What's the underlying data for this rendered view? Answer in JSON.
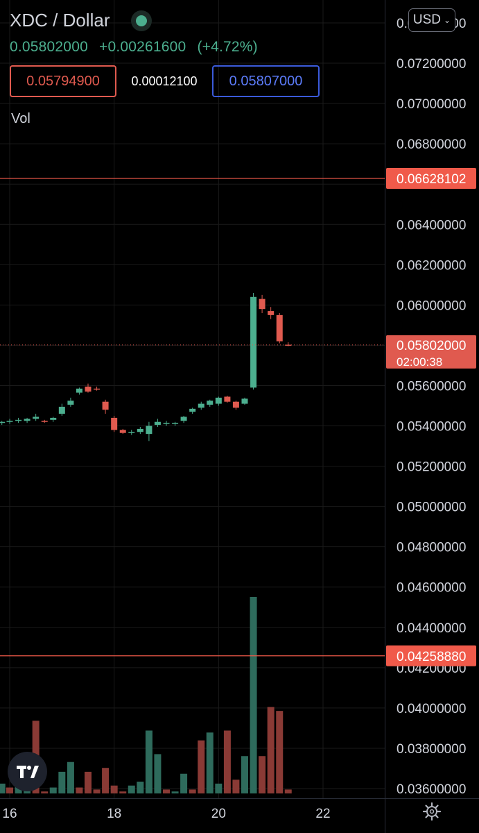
{
  "header": {
    "title": "XDC / Dollar",
    "last_price": "0.05802000",
    "change": "+0.00261600",
    "change_pct": "(+4.72%)",
    "bid": "0.05794900",
    "spread": "0.00012100",
    "ask": "0.05807000",
    "volume_label": "Vol"
  },
  "currency_select": {
    "value": "USD"
  },
  "price_scale": {
    "current_price": "0.05802000",
    "countdown": "02:00:38",
    "alert_lines": [
      "0.06628102",
      "0.04258880"
    ]
  },
  "colors": {
    "up": "#4caf8f",
    "down": "#e05a4f",
    "background": "#000000",
    "grid": "#1a1a1a",
    "text": "#d1d4dc",
    "alert": "#f05a4a"
  },
  "icons": {
    "logo": "tradingview-logo-icon",
    "settings": "gear-icon",
    "status": "market-open-dot-icon",
    "dropdown": "chevron-down-icon"
  },
  "chart_data": {
    "type": "candlestick",
    "symbol": "XDC / Dollar",
    "y_tick_labels": [
      "0.07400000",
      "0.07200000",
      "0.07000000",
      "0.06800000",
      "0.06600000",
      "0.06400000",
      "0.06200000",
      "0.06000000",
      "0.05800000",
      "0.05600000",
      "0.05400000",
      "0.05200000",
      "0.05000000",
      "0.04800000",
      "0.04600000",
      "0.04400000",
      "0.04200000",
      "0.04000000",
      "0.03800000",
      "0.03600000"
    ],
    "y_ticks": [
      0.074,
      0.072,
      0.07,
      0.068,
      0.066,
      0.064,
      0.062,
      0.06,
      0.058,
      0.056,
      0.054,
      0.052,
      0.05,
      0.048,
      0.046,
      0.044,
      0.042,
      0.04,
      0.038,
      0.036
    ],
    "x_tick_labels": [
      "16",
      "18",
      "20",
      "22"
    ],
    "x_ticks": [
      16,
      18,
      20,
      22
    ],
    "xlim": [
      15.85,
      23.4
    ],
    "ylim": [
      0.03527,
      0.07477
    ],
    "grid": true,
    "candles": [
      {
        "x": 15.85,
        "o": 0.05415,
        "h": 0.05425,
        "l": 0.05405,
        "c": 0.0542
      },
      {
        "x": 16.0,
        "o": 0.0542,
        "h": 0.05435,
        "l": 0.0541,
        "c": 0.05425
      },
      {
        "x": 16.167,
        "o": 0.05425,
        "h": 0.0544,
        "l": 0.05415,
        "c": 0.0543
      },
      {
        "x": 16.333,
        "o": 0.05425,
        "h": 0.0544,
        "l": 0.05415,
        "c": 0.05435
      },
      {
        "x": 16.5,
        "o": 0.05435,
        "h": 0.0546,
        "l": 0.05425,
        "c": 0.05445
      },
      {
        "x": 16.667,
        "o": 0.05425,
        "h": 0.0543,
        "l": 0.05415,
        "c": 0.0542
      },
      {
        "x": 16.833,
        "o": 0.0543,
        "h": 0.05445,
        "l": 0.0542,
        "c": 0.0544
      },
      {
        "x": 17.0,
        "o": 0.0546,
        "h": 0.0551,
        "l": 0.0545,
        "c": 0.05495
      },
      {
        "x": 17.167,
        "o": 0.05505,
        "h": 0.0554,
        "l": 0.05495,
        "c": 0.05525
      },
      {
        "x": 17.333,
        "o": 0.05565,
        "h": 0.0559,
        "l": 0.05555,
        "c": 0.05585
      },
      {
        "x": 17.5,
        "o": 0.05595,
        "h": 0.0561,
        "l": 0.05565,
        "c": 0.0557
      },
      {
        "x": 17.667,
        "o": 0.05585,
        "h": 0.05595,
        "l": 0.05575,
        "c": 0.0558
      },
      {
        "x": 17.833,
        "o": 0.0552,
        "h": 0.0553,
        "l": 0.0546,
        "c": 0.0548
      },
      {
        "x": 18.0,
        "o": 0.0544,
        "h": 0.0545,
        "l": 0.0537,
        "c": 0.0538
      },
      {
        "x": 18.167,
        "o": 0.0538,
        "h": 0.05385,
        "l": 0.0536,
        "c": 0.05365
      },
      {
        "x": 18.333,
        "o": 0.05365,
        "h": 0.0538,
        "l": 0.05355,
        "c": 0.0537
      },
      {
        "x": 18.5,
        "o": 0.0537,
        "h": 0.05395,
        "l": 0.0536,
        "c": 0.05385
      },
      {
        "x": 18.667,
        "o": 0.0536,
        "h": 0.0542,
        "l": 0.05325,
        "c": 0.054
      },
      {
        "x": 18.833,
        "o": 0.05405,
        "h": 0.05435,
        "l": 0.05395,
        "c": 0.0542
      },
      {
        "x": 19.0,
        "o": 0.0541,
        "h": 0.05425,
        "l": 0.054,
        "c": 0.05415
      },
      {
        "x": 19.167,
        "o": 0.0541,
        "h": 0.0542,
        "l": 0.054,
        "c": 0.05415
      },
      {
        "x": 19.333,
        "o": 0.05425,
        "h": 0.0545,
        "l": 0.05415,
        "c": 0.05445
      },
      {
        "x": 19.5,
        "o": 0.0547,
        "h": 0.0549,
        "l": 0.0546,
        "c": 0.05485
      },
      {
        "x": 19.667,
        "o": 0.0549,
        "h": 0.0552,
        "l": 0.0548,
        "c": 0.0551
      },
      {
        "x": 19.833,
        "o": 0.05505,
        "h": 0.0553,
        "l": 0.05495,
        "c": 0.05525
      },
      {
        "x": 20.0,
        "o": 0.0551,
        "h": 0.05545,
        "l": 0.055,
        "c": 0.0554
      },
      {
        "x": 20.167,
        "o": 0.05545,
        "h": 0.0555,
        "l": 0.05515,
        "c": 0.0552
      },
      {
        "x": 20.333,
        "o": 0.0552,
        "h": 0.05525,
        "l": 0.0548,
        "c": 0.0549
      },
      {
        "x": 20.5,
        "o": 0.0551,
        "h": 0.0554,
        "l": 0.05505,
        "c": 0.05535
      },
      {
        "x": 20.667,
        "o": 0.0559,
        "h": 0.0606,
        "l": 0.0558,
        "c": 0.0604
      },
      {
        "x": 20.833,
        "o": 0.0603,
        "h": 0.0605,
        "l": 0.0596,
        "c": 0.0598
      },
      {
        "x": 21.0,
        "o": 0.0597,
        "h": 0.0599,
        "l": 0.0593,
        "c": 0.0595
      },
      {
        "x": 21.167,
        "o": 0.0595,
        "h": 0.0596,
        "l": 0.0581,
        "c": 0.0582
      },
      {
        "x": 21.333,
        "o": 0.05803,
        "h": 0.05815,
        "l": 0.05795,
        "c": 0.05802
      }
    ],
    "volume": {
      "x": [
        15.85,
        16.0,
        16.167,
        16.333,
        16.5,
        16.667,
        16.833,
        17.0,
        17.167,
        17.333,
        17.5,
        17.667,
        17.833,
        18.0,
        18.167,
        18.333,
        18.5,
        18.667,
        18.833,
        19.0,
        19.167,
        19.333,
        19.5,
        19.667,
        19.833,
        20.0,
        20.167,
        20.333,
        20.5,
        20.667,
        20.833,
        21.0,
        21.167,
        21.333
      ],
      "relative_height": [
        0.05,
        0.03,
        0.04,
        0.14,
        0.37,
        0.01,
        0.03,
        0.11,
        0.16,
        0.03,
        0.11,
        0.02,
        0.13,
        0.04,
        0.01,
        0.04,
        0.06,
        0.32,
        0.2,
        0.02,
        0.01,
        0.1,
        0.02,
        0.27,
        0.31,
        0.05,
        0.32,
        0.07,
        0.19,
        1.0,
        0.19,
        0.44,
        0.42,
        0.02
      ],
      "up": [
        true,
        false,
        true,
        true,
        false,
        false,
        true,
        true,
        true,
        false,
        false,
        false,
        false,
        false,
        false,
        true,
        true,
        true,
        true,
        false,
        true,
        true,
        false,
        false,
        true,
        true,
        false,
        false,
        true,
        true,
        false,
        false,
        false,
        false
      ]
    }
  }
}
